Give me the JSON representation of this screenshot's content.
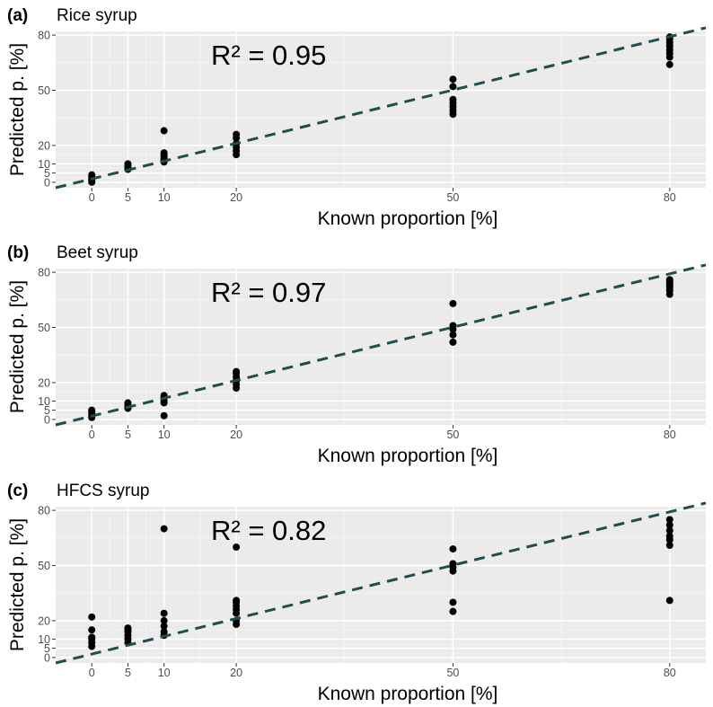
{
  "colors": {
    "panel_bg": "#ebebeb",
    "major_grid": "#ffffff",
    "minor_grid": "#f5f5f5",
    "point": "#000000",
    "fit_line": "#1f4e4f",
    "tick_text": "#4d4d4d"
  },
  "chart_data": [
    {
      "type": "scatter",
      "panel": "(a)",
      "title": "Rice syrup",
      "annotation": "R² = 0.95",
      "xlabel": "Known proportion [%]",
      "ylabel": "Predicted p. [%]",
      "xlim": [
        -5,
        85
      ],
      "ylim": [
        -3,
        82
      ],
      "x_ticks": [
        0,
        5,
        10,
        20,
        50,
        80
      ],
      "y_ticks": [
        0,
        5,
        10,
        20,
        50,
        80
      ],
      "fit_line": {
        "style": "dashed",
        "from": [
          -5,
          -3
        ],
        "to": [
          85,
          84
        ]
      },
      "points": [
        {
          "x": 0,
          "y": 0
        },
        {
          "x": 0,
          "y": 1
        },
        {
          "x": 0,
          "y": 2
        },
        {
          "x": 0,
          "y": 3
        },
        {
          "x": 0,
          "y": 4
        },
        {
          "x": 5,
          "y": 7
        },
        {
          "x": 5,
          "y": 8
        },
        {
          "x": 5,
          "y": 9
        },
        {
          "x": 5,
          "y": 10
        },
        {
          "x": 10,
          "y": 11
        },
        {
          "x": 10,
          "y": 12
        },
        {
          "x": 10,
          "y": 13
        },
        {
          "x": 10,
          "y": 14
        },
        {
          "x": 10,
          "y": 15
        },
        {
          "x": 10,
          "y": 16
        },
        {
          "x": 10,
          "y": 28
        },
        {
          "x": 20,
          "y": 15
        },
        {
          "x": 20,
          "y": 17
        },
        {
          "x": 20,
          "y": 19
        },
        {
          "x": 20,
          "y": 21
        },
        {
          "x": 20,
          "y": 24
        },
        {
          "x": 20,
          "y": 26
        },
        {
          "x": 50,
          "y": 37
        },
        {
          "x": 50,
          "y": 39
        },
        {
          "x": 50,
          "y": 41
        },
        {
          "x": 50,
          "y": 43
        },
        {
          "x": 50,
          "y": 45
        },
        {
          "x": 50,
          "y": 52
        },
        {
          "x": 50,
          "y": 56
        },
        {
          "x": 80,
          "y": 64
        },
        {
          "x": 80,
          "y": 68
        },
        {
          "x": 80,
          "y": 70
        },
        {
          "x": 80,
          "y": 72
        },
        {
          "x": 80,
          "y": 74
        },
        {
          "x": 80,
          "y": 76
        },
        {
          "x": 80,
          "y": 78
        },
        {
          "x": 80,
          "y": 79
        }
      ]
    },
    {
      "type": "scatter",
      "panel": "(b)",
      "title": "Beet syrup",
      "annotation": "R² = 0.97",
      "xlabel": "Known proportion [%]",
      "ylabel": "Predicted p. [%]",
      "xlim": [
        -5,
        85
      ],
      "ylim": [
        -3,
        82
      ],
      "x_ticks": [
        0,
        5,
        10,
        20,
        50,
        80
      ],
      "y_ticks": [
        0,
        5,
        10,
        20,
        50,
        80
      ],
      "fit_line": {
        "style": "dashed",
        "from": [
          -5,
          -3
        ],
        "to": [
          85,
          84
        ]
      },
      "points": [
        {
          "x": 0,
          "y": 1
        },
        {
          "x": 0,
          "y": 2
        },
        {
          "x": 0,
          "y": 3
        },
        {
          "x": 0,
          "y": 4
        },
        {
          "x": 0,
          "y": 5
        },
        {
          "x": 5,
          "y": 6
        },
        {
          "x": 5,
          "y": 7
        },
        {
          "x": 5,
          "y": 8
        },
        {
          "x": 5,
          "y": 9
        },
        {
          "x": 10,
          "y": 2
        },
        {
          "x": 10,
          "y": 9
        },
        {
          "x": 10,
          "y": 10
        },
        {
          "x": 10,
          "y": 12
        },
        {
          "x": 10,
          "y": 13
        },
        {
          "x": 20,
          "y": 17
        },
        {
          "x": 20,
          "y": 19
        },
        {
          "x": 20,
          "y": 21
        },
        {
          "x": 20,
          "y": 23
        },
        {
          "x": 20,
          "y": 25
        },
        {
          "x": 20,
          "y": 26
        },
        {
          "x": 50,
          "y": 42
        },
        {
          "x": 50,
          "y": 46
        },
        {
          "x": 50,
          "y": 49
        },
        {
          "x": 50,
          "y": 51
        },
        {
          "x": 50,
          "y": 63
        },
        {
          "x": 80,
          "y": 68
        },
        {
          "x": 80,
          "y": 70
        },
        {
          "x": 80,
          "y": 71
        },
        {
          "x": 80,
          "y": 72
        },
        {
          "x": 80,
          "y": 73
        },
        {
          "x": 80,
          "y": 74
        },
        {
          "x": 80,
          "y": 75
        },
        {
          "x": 80,
          "y": 76
        }
      ]
    },
    {
      "type": "scatter",
      "panel": "(c)",
      "title": "HFCS syrup",
      "annotation": "R² = 0.82",
      "xlabel": "Known proportion [%]",
      "ylabel": "Predicted p. [%]",
      "xlim": [
        -5,
        85
      ],
      "ylim": [
        -3,
        82
      ],
      "x_ticks": [
        0,
        5,
        10,
        20,
        50,
        80
      ],
      "y_ticks": [
        0,
        5,
        10,
        20,
        50,
        80
      ],
      "fit_line": {
        "style": "dashed",
        "from": [
          -5,
          -3
        ],
        "to": [
          85,
          84
        ]
      },
      "points": [
        {
          "x": 0,
          "y": 6
        },
        {
          "x": 0,
          "y": 8
        },
        {
          "x": 0,
          "y": 10
        },
        {
          "x": 0,
          "y": 11
        },
        {
          "x": 0,
          "y": 15
        },
        {
          "x": 0,
          "y": 22
        },
        {
          "x": 5,
          "y": 8
        },
        {
          "x": 5,
          "y": 10
        },
        {
          "x": 5,
          "y": 12
        },
        {
          "x": 5,
          "y": 14
        },
        {
          "x": 5,
          "y": 15
        },
        {
          "x": 5,
          "y": 16
        },
        {
          "x": 10,
          "y": 12
        },
        {
          "x": 10,
          "y": 14
        },
        {
          "x": 10,
          "y": 17
        },
        {
          "x": 10,
          "y": 20
        },
        {
          "x": 10,
          "y": 24
        },
        {
          "x": 10,
          "y": 70
        },
        {
          "x": 20,
          "y": 18
        },
        {
          "x": 20,
          "y": 20
        },
        {
          "x": 20,
          "y": 24
        },
        {
          "x": 20,
          "y": 26
        },
        {
          "x": 20,
          "y": 28
        },
        {
          "x": 20,
          "y": 30
        },
        {
          "x": 20,
          "y": 31
        },
        {
          "x": 20,
          "y": 60
        },
        {
          "x": 50,
          "y": 25
        },
        {
          "x": 50,
          "y": 30
        },
        {
          "x": 50,
          "y": 47
        },
        {
          "x": 50,
          "y": 49
        },
        {
          "x": 50,
          "y": 51
        },
        {
          "x": 50,
          "y": 59
        },
        {
          "x": 80,
          "y": 31
        },
        {
          "x": 80,
          "y": 61
        },
        {
          "x": 80,
          "y": 64
        },
        {
          "x": 80,
          "y": 66
        },
        {
          "x": 80,
          "y": 69
        },
        {
          "x": 80,
          "y": 72
        },
        {
          "x": 80,
          "y": 75
        }
      ]
    }
  ]
}
